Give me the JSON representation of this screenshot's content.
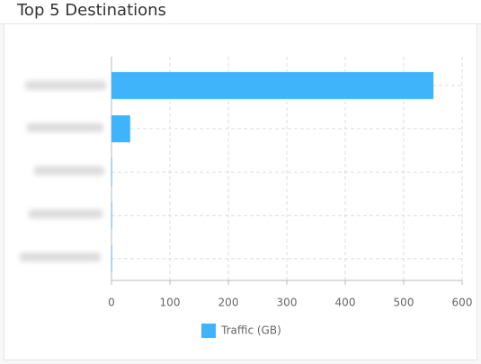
{
  "chart_data": {
    "type": "hbar",
    "title": "Top 5 Destinations",
    "categories": [
      null,
      null,
      null,
      null,
      null
    ],
    "series": [
      {
        "name": "Traffic (GB)",
        "color": "#40b4fb",
        "values": [
          551,
          32,
          1,
          1,
          1
        ]
      }
    ],
    "xlim": [
      0,
      600
    ],
    "xticks": [
      0,
      100,
      200,
      300,
      400,
      500,
      600
    ],
    "grid": true,
    "legend": "bottom"
  }
}
